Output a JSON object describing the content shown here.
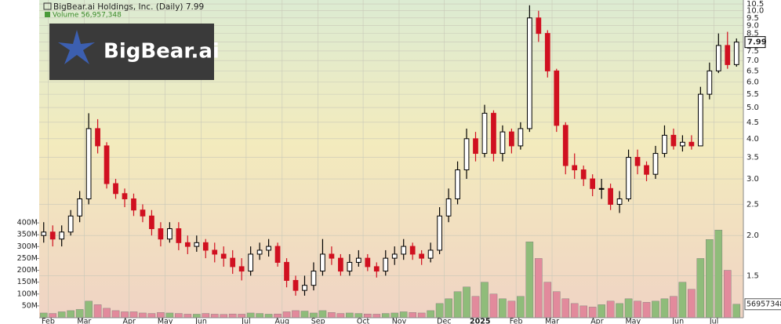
{
  "chart_data": {
    "type": "candlestick",
    "title": "BigBear.ai Holdings, Inc. (Daily) 7.99",
    "volume_legend": "Volume 56,957,348",
    "logo_text": "BigBear.ai",
    "last_price": 7.99,
    "last_volume": 56957348,
    "log_scale": true,
    "grid": true,
    "up_color": "#000000",
    "down_color": "#d01020",
    "volume_up_color": "#8fbc7a",
    "volume_down_color": "#e28a9c",
    "categories": [
      null,
      "Feb",
      null,
      null,
      null,
      "Mar",
      null,
      null,
      null,
      null,
      "Apr",
      null,
      null,
      null,
      "May",
      null,
      null,
      null,
      "Jun",
      null,
      null,
      null,
      null,
      "Jul",
      null,
      null,
      null,
      "Aug",
      null,
      null,
      null,
      "Sep",
      null,
      null,
      null,
      null,
      "Oct",
      null,
      null,
      null,
      "Nov",
      null,
      null,
      null,
      null,
      "Dec",
      null,
      null,
      null,
      "2025",
      null,
      null,
      null,
      "Feb",
      null,
      null,
      null,
      "Mar",
      null,
      null,
      null,
      null,
      "Apr",
      null,
      null,
      null,
      "May",
      null,
      null,
      null,
      null,
      "Jun",
      null,
      null,
      null,
      "Jul",
      null,
      null
    ],
    "open": [
      2.0,
      2.05,
      1.95,
      2.05,
      2.3,
      2.6,
      4.3,
      3.8,
      2.9,
      2.7,
      2.6,
      2.4,
      2.3,
      2.1,
      1.95,
      2.1,
      1.9,
      1.85,
      1.9,
      1.8,
      1.75,
      1.7,
      1.6,
      1.55,
      1.75,
      1.8,
      1.85,
      1.65,
      1.45,
      1.35,
      1.4,
      1.55,
      1.75,
      1.7,
      1.55,
      1.65,
      1.7,
      1.6,
      1.55,
      1.7,
      1.75,
      1.85,
      1.75,
      1.7,
      1.8,
      2.3,
      2.6,
      3.2,
      4.0,
      3.6,
      4.8,
      3.6,
      4.2,
      3.8,
      4.3,
      9.5,
      8.5,
      6.5,
      4.4,
      3.3,
      3.2,
      3.0,
      2.8,
      2.8,
      2.5,
      2.6,
      3.5,
      3.3,
      3.1,
      3.6,
      4.1,
      3.8,
      3.9,
      3.8,
      5.5,
      6.5,
      7.8,
      6.8
    ],
    "high": [
      2.2,
      2.15,
      2.15,
      2.4,
      2.75,
      4.8,
      4.6,
      3.9,
      3.0,
      2.8,
      2.7,
      2.5,
      2.4,
      2.2,
      2.2,
      2.2,
      2.0,
      2.0,
      1.95,
      1.9,
      1.85,
      1.8,
      1.7,
      1.85,
      1.9,
      1.95,
      1.9,
      1.7,
      1.5,
      1.5,
      1.65,
      1.95,
      1.85,
      1.75,
      1.75,
      1.8,
      1.75,
      1.65,
      1.8,
      1.85,
      1.95,
      1.9,
      1.8,
      1.9,
      2.45,
      2.8,
      3.4,
      4.3,
      4.2,
      5.1,
      4.9,
      4.4,
      4.3,
      4.5,
      10.4,
      10.0,
      8.7,
      6.6,
      4.5,
      3.6,
      3.3,
      3.1,
      3.0,
      2.9,
      2.75,
      3.7,
      3.7,
      3.4,
      3.8,
      4.4,
      4.3,
      4.1,
      4.1,
      5.8,
      6.9,
      8.5,
      8.6,
      8.2
    ],
    "low": [
      1.9,
      1.85,
      1.85,
      2.0,
      2.2,
      2.5,
      3.6,
      2.8,
      2.6,
      2.45,
      2.3,
      2.2,
      2.0,
      1.85,
      1.9,
      1.8,
      1.75,
      1.78,
      1.7,
      1.65,
      1.6,
      1.52,
      1.45,
      1.5,
      1.68,
      1.72,
      1.6,
      1.38,
      1.3,
      1.3,
      1.35,
      1.5,
      1.62,
      1.5,
      1.5,
      1.6,
      1.55,
      1.48,
      1.5,
      1.62,
      1.68,
      1.68,
      1.62,
      1.65,
      1.75,
      2.2,
      2.5,
      3.0,
      3.4,
      3.5,
      3.4,
      3.4,
      3.6,
      3.7,
      4.2,
      8.0,
      6.2,
      4.2,
      3.1,
      3.0,
      2.85,
      2.65,
      2.6,
      2.4,
      2.35,
      2.55,
      3.1,
      2.95,
      3.0,
      3.5,
      3.7,
      3.65,
      3.7,
      3.8,
      5.3,
      6.4,
      6.6,
      6.7
    ],
    "close": [
      2.05,
      1.95,
      2.05,
      2.3,
      2.6,
      4.3,
      3.8,
      2.9,
      2.7,
      2.6,
      2.4,
      2.3,
      2.1,
      1.95,
      2.1,
      1.9,
      1.85,
      1.9,
      1.8,
      1.75,
      1.7,
      1.6,
      1.55,
      1.75,
      1.8,
      1.85,
      1.65,
      1.45,
      1.35,
      1.4,
      1.55,
      1.75,
      1.7,
      1.55,
      1.65,
      1.7,
      1.6,
      1.55,
      1.7,
      1.75,
      1.85,
      1.75,
      1.7,
      1.8,
      2.3,
      2.6,
      3.2,
      4.0,
      3.6,
      4.8,
      3.6,
      4.2,
      3.8,
      4.3,
      9.5,
      8.5,
      6.5,
      4.4,
      3.3,
      3.2,
      3.0,
      2.8,
      2.8,
      2.5,
      2.6,
      3.5,
      3.3,
      3.1,
      3.6,
      4.1,
      3.8,
      3.9,
      3.8,
      5.5,
      6.5,
      7.8,
      6.8,
      7.99
    ],
    "volume": [
      20,
      18,
      25,
      30,
      35,
      70,
      55,
      40,
      30,
      25,
      25,
      20,
      18,
      22,
      20,
      18,
      15,
      15,
      18,
      15,
      14,
      16,
      15,
      20,
      18,
      15,
      16,
      25,
      30,
      28,
      20,
      30,
      22,
      18,
      20,
      18,
      16,
      15,
      18,
      20,
      25,
      22,
      20,
      30,
      60,
      80,
      110,
      130,
      90,
      150,
      100,
      80,
      70,
      90,
      320,
      250,
      150,
      110,
      80,
      60,
      50,
      45,
      55,
      70,
      60,
      80,
      70,
      65,
      70,
      80,
      90,
      150,
      120,
      250,
      330,
      370,
      200,
      57
    ],
    "ylim": [
      1.11,
      10.8
    ],
    "yticks": [
      1.5,
      {
        "value": 2,
        "label": "2.0"
      },
      2.5,
      {
        "value": 3,
        "label": "3.0"
      },
      3.5,
      {
        "value": 4,
        "label": "4.0"
      },
      4.5,
      {
        "value": 5,
        "label": "5.0"
      },
      5.5,
      {
        "value": 6,
        "label": "6.0"
      },
      6.5,
      {
        "value": 7,
        "label": "7.0"
      },
      7.5,
      {
        "value": 8,
        "label": "8.0"
      },
      8.5,
      {
        "value": 9,
        "label": "9.0"
      },
      9.5,
      {
        "value": 10,
        "label": "10.0"
      },
      10.5
    ],
    "volume_ylim": [
      0,
      1340
    ],
    "volume_yticks": [
      {
        "value": 50,
        "label": "50M"
      },
      {
        "value": 100,
        "label": "100M"
      },
      {
        "value": 150,
        "label": "150M"
      },
      {
        "value": 200,
        "label": "200M"
      },
      {
        "value": 250,
        "label": "250M"
      },
      {
        "value": 300,
        "label": "300M"
      },
      {
        "value": 350,
        "label": "350M"
      },
      {
        "value": 400,
        "label": "400M"
      }
    ]
  }
}
